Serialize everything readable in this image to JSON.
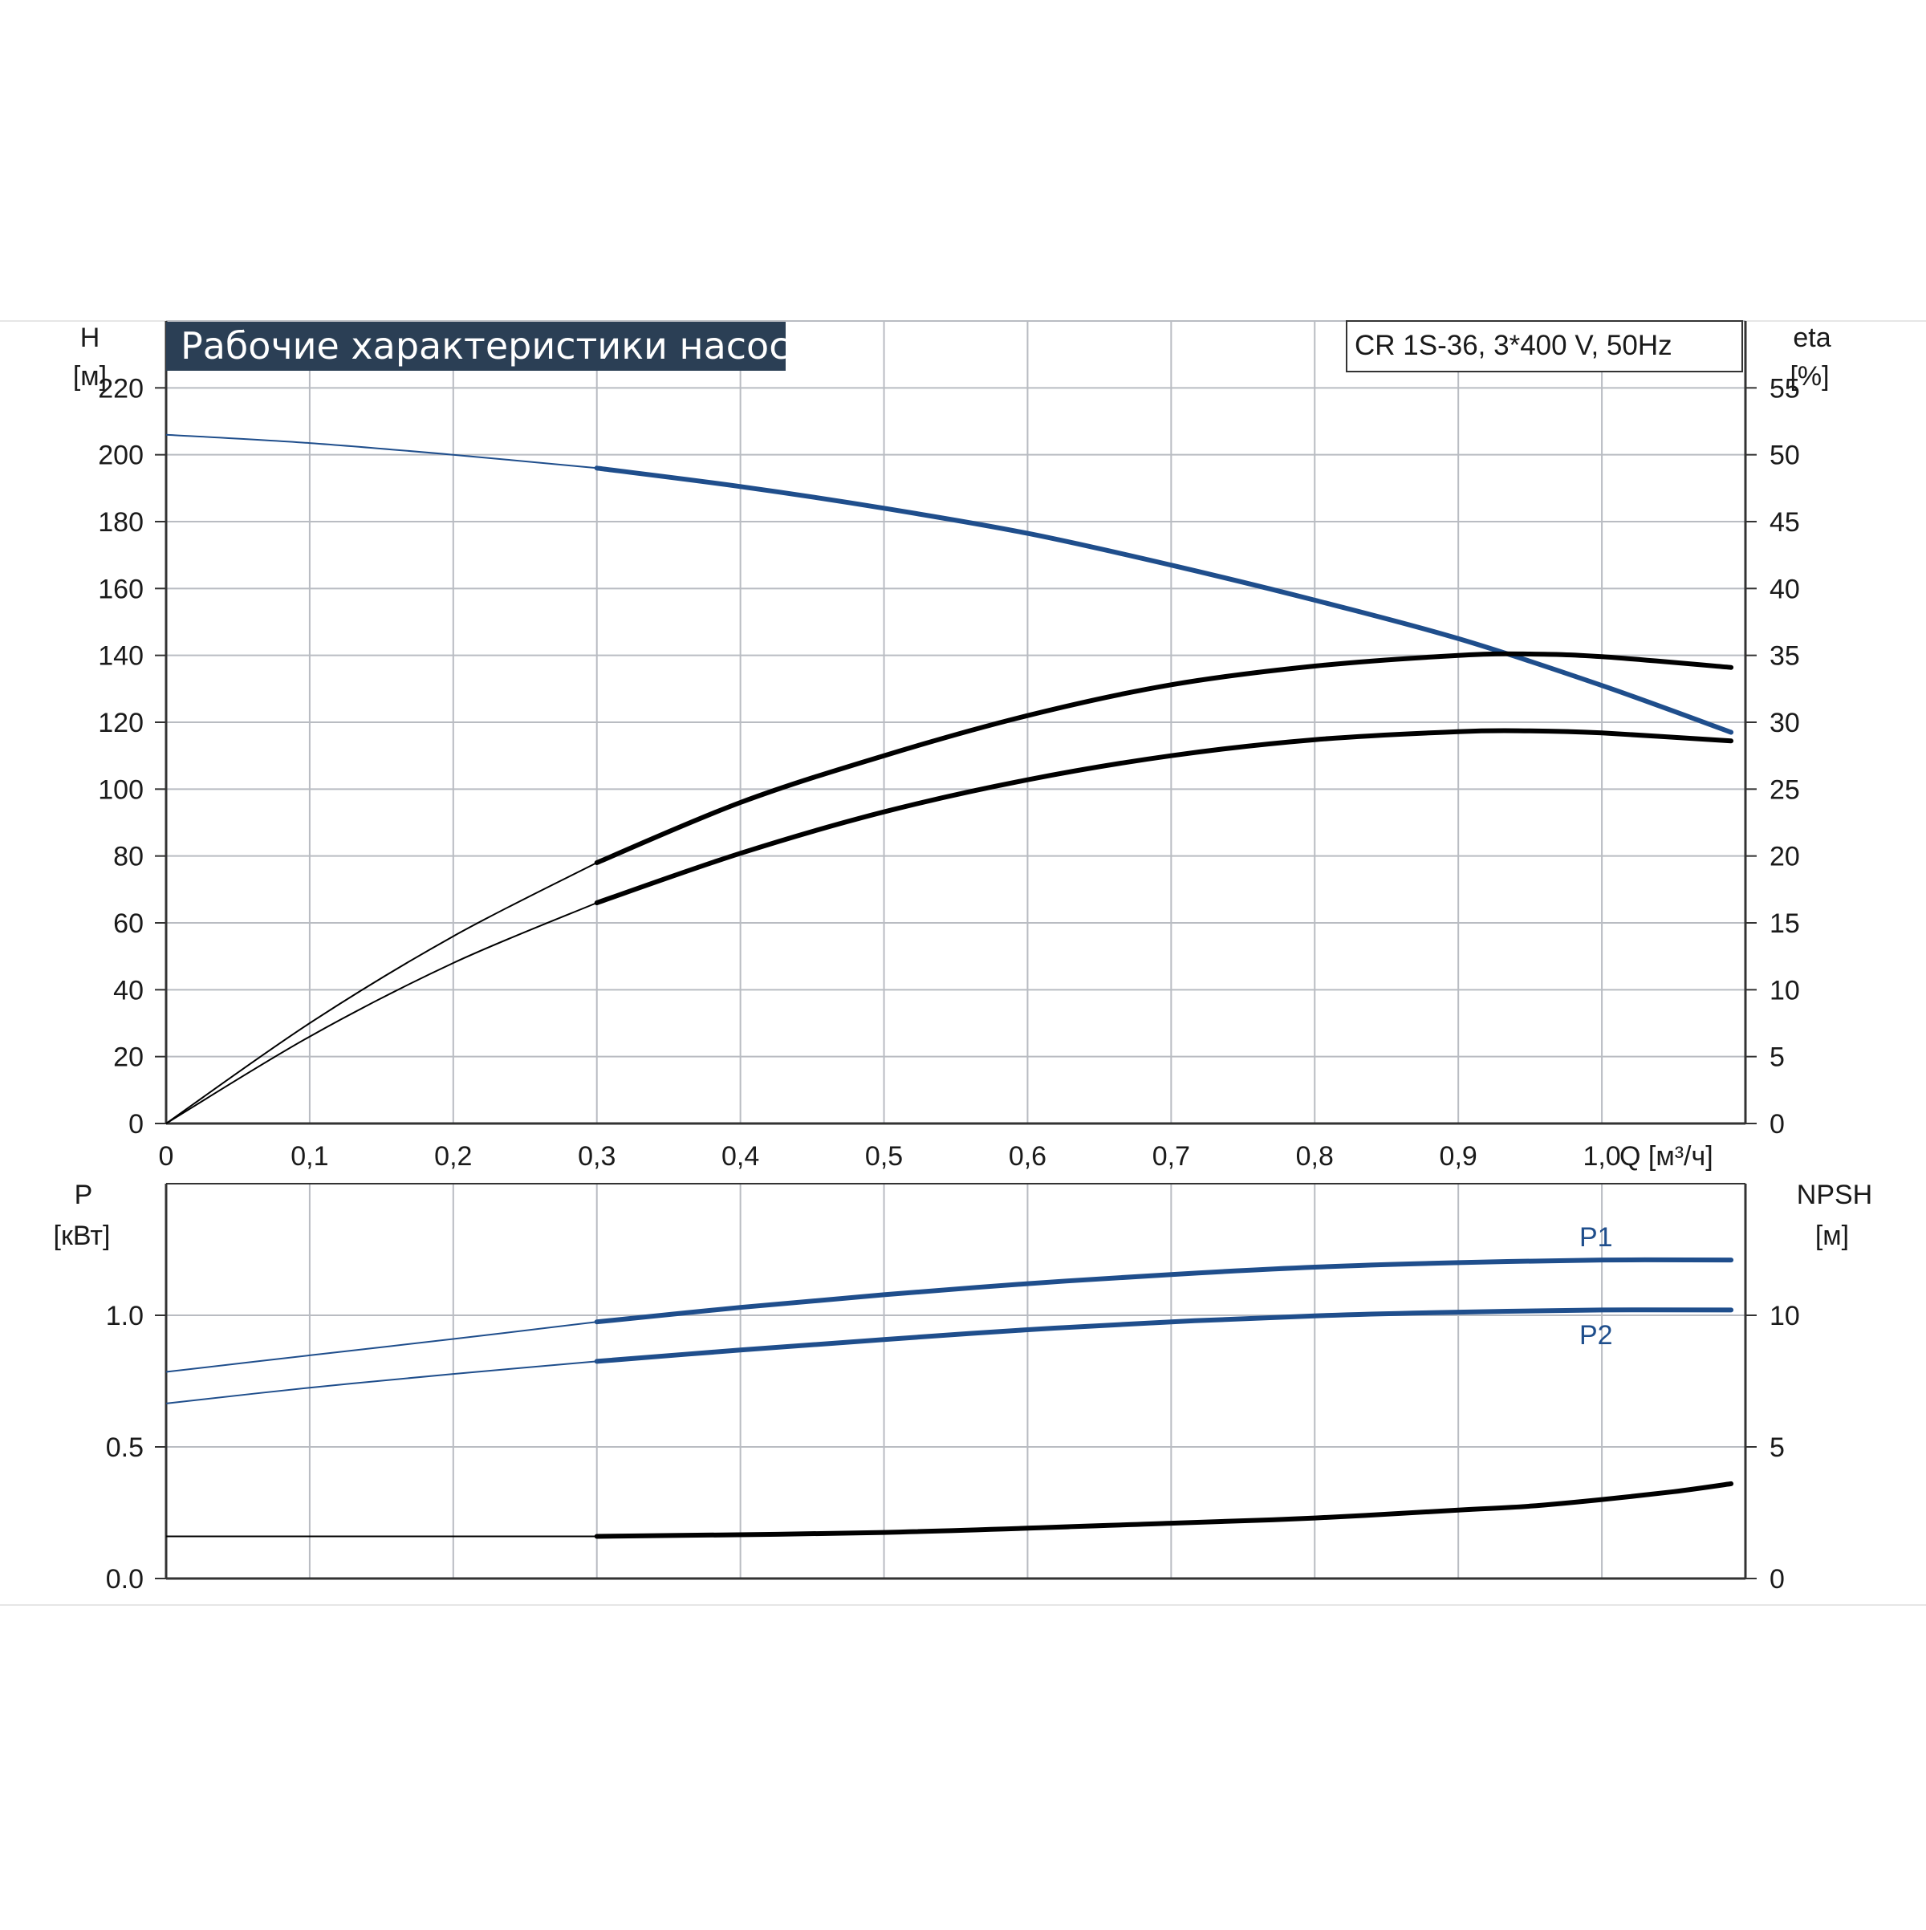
{
  "title": "Рабочие характеристики насоса",
  "model_label": "CR 1S-36, 3*400 V, 50Hz",
  "colors": {
    "blue": "#1f4e8c",
    "black": "#000000",
    "grid": "#b9bcc2",
    "title_bg": "#2b3f55",
    "axis": "#333333"
  },
  "top_axes": {
    "y_left_label": [
      "H",
      "[м]"
    ],
    "y_right_label": [
      "eta",
      "[%]"
    ],
    "y_left_ticks": [
      "0",
      "20",
      "40",
      "60",
      "80",
      "100",
      "120",
      "140",
      "160",
      "180",
      "200",
      "220"
    ],
    "y_right_ticks": [
      "0",
      "5",
      "10",
      "15",
      "20",
      "25",
      "30",
      "35",
      "40",
      "45",
      "50",
      "55"
    ],
    "x_ticks": [
      "0",
      "0,1",
      "0,2",
      "0,3",
      "0,4",
      "0,5",
      "0,6",
      "0,7",
      "0,8",
      "0,9",
      "1,0"
    ],
    "x_label": "Q [м³/ч]"
  },
  "bottom_axes": {
    "y_left_label": [
      "P",
      "[кВт]"
    ],
    "y_right_label": [
      "NPSH",
      "[м]"
    ],
    "y_left_ticks": [
      "0.0",
      "0.5",
      "1.0"
    ],
    "y_right_ticks": [
      "0",
      "5",
      "10"
    ],
    "series_labels": [
      "P1",
      "P2"
    ]
  },
  "chart_data": [
    {
      "type": "line",
      "title": "Рабочие характеристики насоса",
      "xlabel": "Q [м³/ч]",
      "ylabel": "H [м]",
      "y2label": "eta [%]",
      "xlim": [
        0,
        1.1
      ],
      "ylim": [
        0,
        240
      ],
      "y2lim": [
        0,
        60
      ],
      "grid": true,
      "series": [
        {
          "key": "H",
          "axis": "left",
          "color": "blue",
          "x": [
            0,
            0.1,
            0.2,
            0.3,
            0.4,
            0.5,
            0.6,
            0.7,
            0.8,
            0.9,
            1.0,
            1.09
          ],
          "y": [
            206,
            203.5,
            200,
            196,
            190.5,
            184,
            176.5,
            167,
            156.5,
            145,
            131,
            117
          ]
        },
        {
          "key": "eta",
          "axis": "right",
          "color": "black",
          "x": [
            0,
            0.1,
            0.2,
            0.3,
            0.4,
            0.5,
            0.6,
            0.7,
            0.8,
            0.9,
            0.95,
            1.0,
            1.09
          ],
          "y": [
            0,
            7.5,
            14,
            19.5,
            24,
            27.5,
            30.5,
            32.8,
            34.2,
            35,
            35.1,
            34.9,
            34.1
          ]
        },
        {
          "key": "eta_total",
          "axis": "right",
          "color": "black",
          "x": [
            0,
            0.1,
            0.2,
            0.3,
            0.4,
            0.5,
            0.6,
            0.7,
            0.8,
            0.9,
            0.95,
            1.0,
            1.09
          ],
          "y": [
            0,
            6.5,
            12,
            16.5,
            20.2,
            23.3,
            25.7,
            27.5,
            28.7,
            29.3,
            29.35,
            29.2,
            28.6
          ]
        }
      ]
    },
    {
      "type": "line",
      "xlabel": "Q [м³/ч]",
      "ylabel": "P [кВт]",
      "y2label": "NPSH [м]",
      "xlim": [
        0,
        1.1
      ],
      "ylim": [
        0,
        1.5
      ],
      "y2lim": [
        0,
        15
      ],
      "grid": true,
      "series": [
        {
          "key": "P1",
          "name": "P1",
          "axis": "left",
          "color": "blue",
          "x": [
            0,
            0.1,
            0.2,
            0.3,
            0.4,
            0.5,
            0.6,
            0.7,
            0.8,
            0.9,
            1.0,
            1.09
          ],
          "y": [
            0.785,
            0.848,
            0.91,
            0.975,
            1.03,
            1.078,
            1.12,
            1.155,
            1.183,
            1.2,
            1.21,
            1.21
          ]
        },
        {
          "key": "P2",
          "name": "P2",
          "axis": "left",
          "color": "blue",
          "x": [
            0,
            0.1,
            0.2,
            0.3,
            0.4,
            0.5,
            0.6,
            0.7,
            0.8,
            0.9,
            1.0,
            1.09
          ],
          "y": [
            0.665,
            0.725,
            0.777,
            0.825,
            0.868,
            0.908,
            0.945,
            0.975,
            0.998,
            1.012,
            1.02,
            1.02
          ]
        },
        {
          "key": "NPSH",
          "axis": "right",
          "color": "black",
          "x": [
            0,
            0.3,
            0.5,
            0.7,
            0.8,
            0.9,
            0.95,
            1.0,
            1.05,
            1.09
          ],
          "y": [
            1.6,
            1.6,
            1.75,
            2.1,
            2.3,
            2.6,
            2.75,
            3.0,
            3.3,
            3.6
          ]
        }
      ]
    }
  ]
}
